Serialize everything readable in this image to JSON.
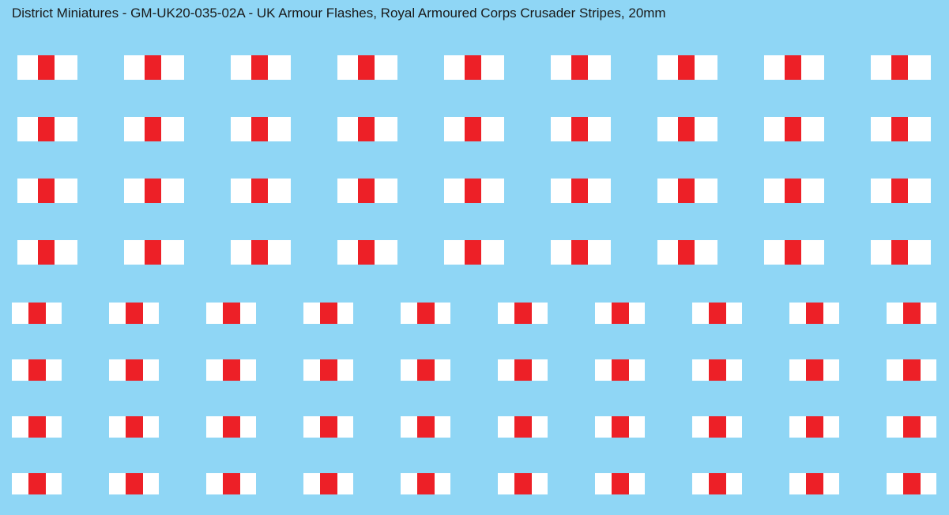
{
  "title": "District Miniatures - GM-UK20-035-02A - UK Armour Flashes, Royal Armoured Corps Crusader Stripes, 20mm",
  "colors": {
    "background": "#8fd6f5",
    "white": "#ffffff",
    "red": "#ed2027",
    "text": "#1a1a1a"
  },
  "decal": {
    "name": "Royal Armoured Corps Crusader Stripes",
    "stripe_pattern": [
      "white",
      "red",
      "white"
    ]
  },
  "groups": [
    {
      "size": "large",
      "rows": 4,
      "columns": 9
    },
    {
      "size": "small",
      "rows": 4,
      "columns": 10
    }
  ]
}
